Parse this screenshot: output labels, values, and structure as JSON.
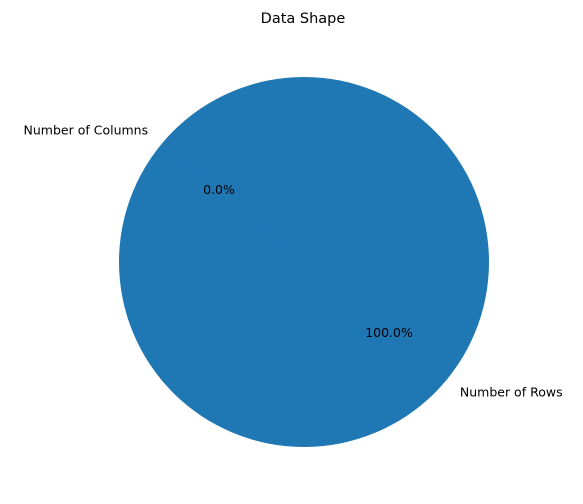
{
  "chart_data": {
    "type": "pie",
    "title": "Data Shape",
    "start_angle_deg": 140,
    "direction": "counterclockwise",
    "color": "#1f77b4",
    "slices": [
      {
        "label": "Number of Rows",
        "value": 100.0,
        "pct_label": "100.0%"
      },
      {
        "label": "Number of Columns",
        "value": 0.0,
        "pct_label": "0.0%"
      }
    ]
  }
}
